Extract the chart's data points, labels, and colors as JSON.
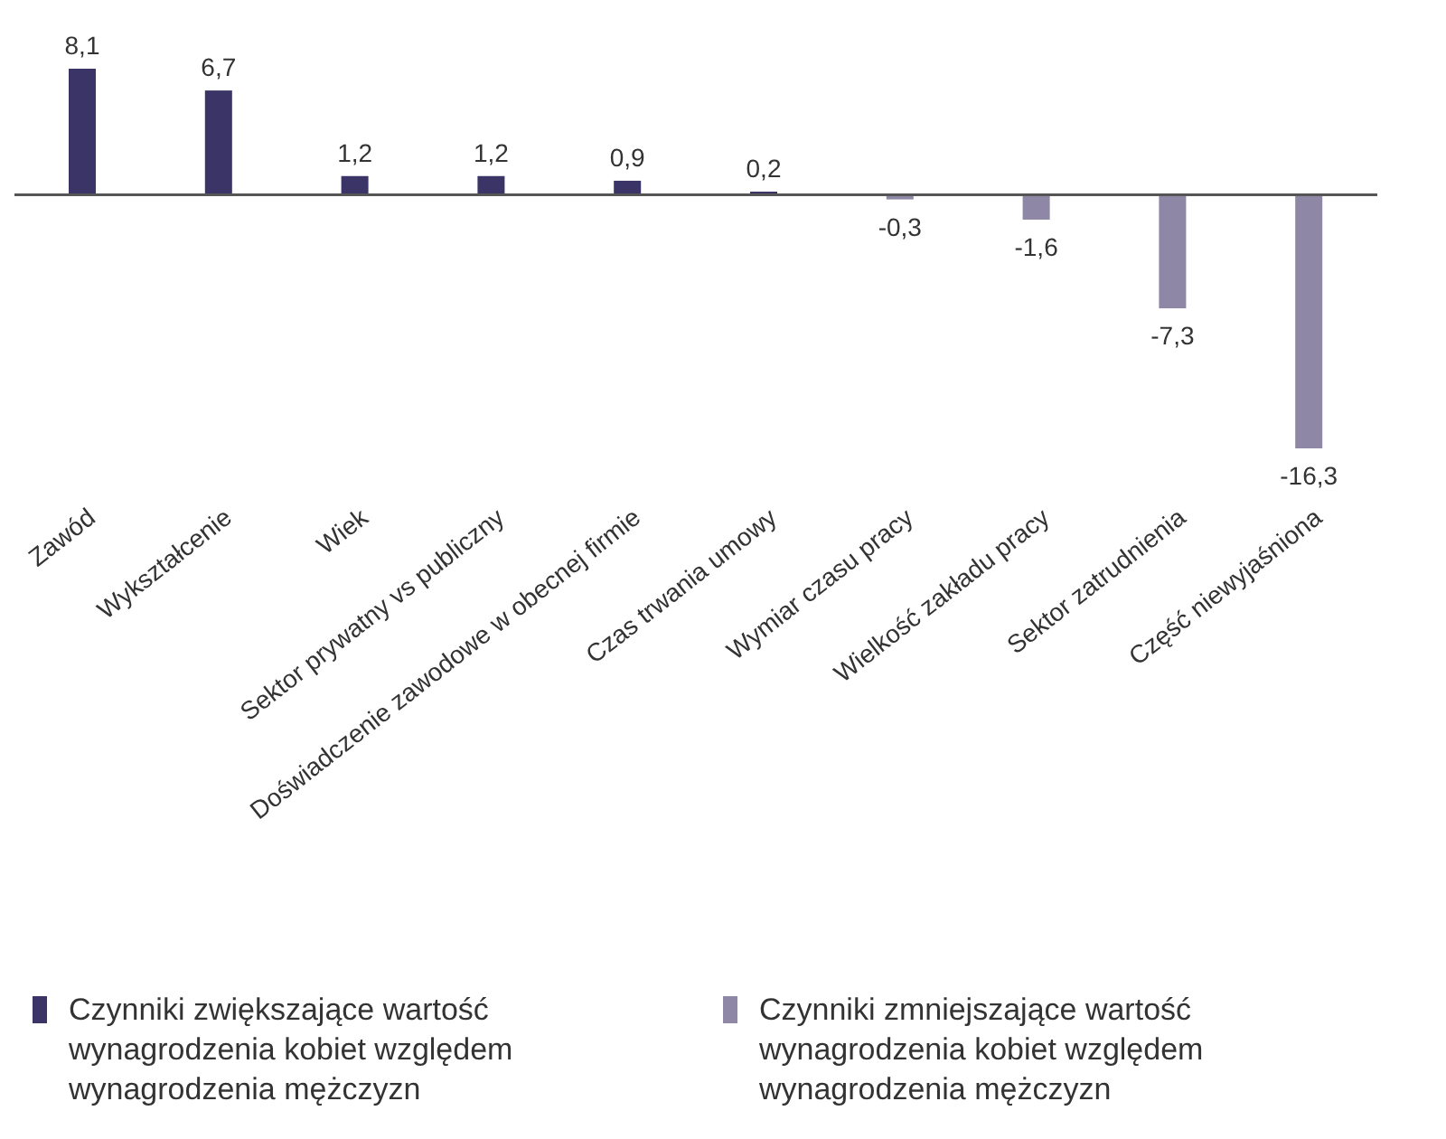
{
  "chart_data": {
    "type": "bar",
    "stacked": true,
    "legend": "bottom",
    "grid": false,
    "categories": [
      "Zawód",
      "Wykształcenie",
      "Wiek",
      "Sektor prywatny vs publiczny",
      "Doświadczenie zawodowe w obecnej firmie",
      "Czas trwania umowy",
      "Wymiar czasu pracy",
      "Wielkość zakładu pracy",
      "Sektor zatrudnienia",
      "Część niewyjaśniona"
    ],
    "series": [
      {
        "name": "Czynniki zwiększające wartość wynagrodzenia kobiet względem wynagrodzenia mężczyzn",
        "color": "#3b3466",
        "values": [
          8.1,
          6.7,
          1.2,
          1.2,
          0.9,
          0.2,
          null,
          null,
          null,
          null
        ],
        "value_labels": [
          "8,1",
          "6,7",
          "1,2",
          "1,2",
          "0,9",
          "0,2",
          null,
          null,
          null,
          null
        ]
      },
      {
        "name": "Czynniki zmniejszające wartość wynagrodzenia kobiet względem wynagrodzenia mężczyzn",
        "color": "#8e87a6",
        "values": [
          null,
          null,
          null,
          null,
          null,
          null,
          -0.3,
          -1.6,
          -7.3,
          -16.3
        ],
        "value_labels": [
          null,
          null,
          null,
          null,
          null,
          null,
          "-0,3",
          "-1,6",
          "-7,3",
          "-16,3"
        ]
      }
    ]
  }
}
